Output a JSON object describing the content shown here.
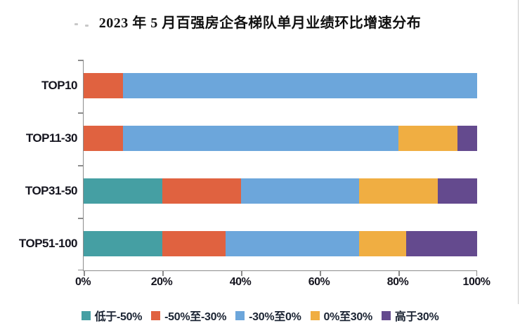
{
  "title": "2023 年 5 月百强房企各梯队单月业绩环比增速分布",
  "colors": {
    "background": "#FFFFFF",
    "axis": "#8C8C8C",
    "label_text": "#15151F",
    "legend_text": "#1B2433",
    "teal": "#459FA3",
    "red": "#E06240",
    "blue": "#6CA6DB",
    "yellow": "#F0AE42",
    "purple": "#644A8E"
  },
  "chart_data": {
    "type": "bar",
    "orientation": "horizontal",
    "stacked": true,
    "grid": false,
    "title": "2023 年 5 月百强房企各梯队单月业绩环比增速分布",
    "xlabel": "",
    "ylabel": "",
    "xlim": [
      0,
      100
    ],
    "x_ticks": [
      "0%",
      "20%",
      "40%",
      "60%",
      "80%",
      "100%"
    ],
    "x_tick_values": [
      0,
      20,
      40,
      60,
      80,
      100
    ],
    "categories": [
      "TOP10",
      "TOP11-30",
      "TOP31-50",
      "TOP51-100"
    ],
    "series": [
      {
        "name": "低于-50%",
        "color": "#459FA3",
        "values": [
          0,
          0,
          20,
          20
        ]
      },
      {
        "name": "-50%至-30%",
        "color": "#E06240",
        "values": [
          10,
          10,
          20,
          16
        ]
      },
      {
        "name": "-30%至0%",
        "color": "#6CA6DB",
        "values": [
          90,
          70,
          30,
          34
        ]
      },
      {
        "name": "0%至30%",
        "color": "#F0AE42",
        "values": [
          0,
          15,
          20,
          12
        ]
      },
      {
        "name": "高于30%",
        "color": "#644A8E",
        "values": [
          0,
          5,
          10,
          18
        ]
      }
    ],
    "legend_position": "bottom"
  }
}
